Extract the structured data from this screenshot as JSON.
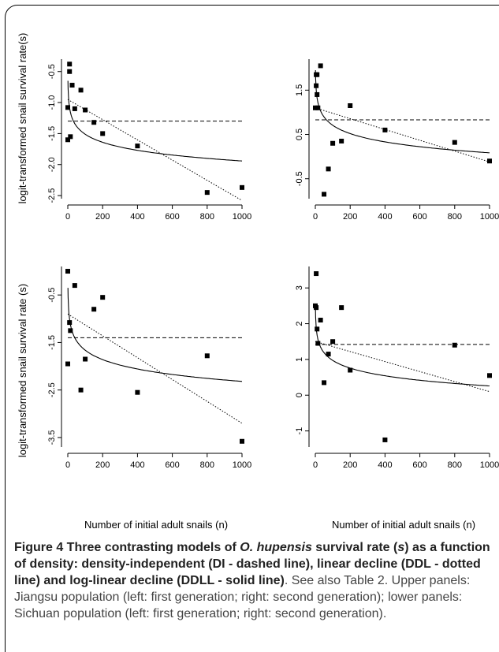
{
  "figure": {
    "ylabel_top": "logit-transformed snail survival rate(s)",
    "ylabel_bottom": "logit-transformed snail survival rate (s)",
    "xlabel": "Number of initial adult snails (n)",
    "caption": {
      "bold_1": "Figure 4 Three contrasting models of ",
      "italic_1": "O. hupensis",
      "bold_2": " survival rate (",
      "italic_2": "s",
      "bold_3": ") as a function of density: density-independent (DI - dashed line), linear decline (DDL - dotted line) and log-linear decline (DDLL - solid line)",
      "rest": ". See also Table 2. Upper panels: Jiangsu population (left: first generation; right: second generation); lower panels: Sichuan population (left: first generation; right: second generation)."
    }
  },
  "chart_data": [
    {
      "type": "scatter",
      "panel": "top-left",
      "xlim": [
        0,
        1000
      ],
      "ylim": [
        -2.55,
        -0.3
      ],
      "xticks": [
        "0",
        "200",
        "400",
        "600",
        "800",
        "1000"
      ],
      "yticks": [
        "-2.5",
        "-2.0",
        "-1.5",
        "-1.0",
        "-0.5"
      ],
      "ytick_values": [
        -2.5,
        -2.0,
        -1.5,
        -1.0,
        -0.5
      ],
      "points": [
        [
          0,
          -1.08
        ],
        [
          0,
          -1.6
        ],
        [
          10,
          -0.38
        ],
        [
          10,
          -0.5
        ],
        [
          15,
          -1.55
        ],
        [
          25,
          -0.72
        ],
        [
          40,
          -1.1
        ],
        [
          75,
          -0.8
        ],
        [
          100,
          -1.12
        ],
        [
          150,
          -1.32
        ],
        [
          200,
          -1.5
        ],
        [
          400,
          -1.7
        ],
        [
          800,
          -2.45
        ],
        [
          1000,
          -2.37
        ]
      ],
      "di_level": -1.3,
      "ddl_line": [
        [
          0,
          -0.95
        ],
        [
          1000,
          -2.58
        ]
      ],
      "ddll": {
        "a": -0.65,
        "b": -0.187
      }
    },
    {
      "type": "scatter",
      "panel": "top-right",
      "xlim": [
        0,
        1000
      ],
      "ylim": [
        -0.95,
        2.2
      ],
      "xticks": [
        "0",
        "200",
        "400",
        "600",
        "800",
        "1000"
      ],
      "yticks": [
        "-0.5",
        "0.5",
        "1.5"
      ],
      "ytick_values": [
        -0.5,
        0.5,
        1.5
      ],
      "points": [
        [
          0,
          1.1
        ],
        [
          5,
          1.6
        ],
        [
          5,
          1.85
        ],
        [
          10,
          1.85
        ],
        [
          10,
          1.4
        ],
        [
          15,
          1.1
        ],
        [
          30,
          2.05
        ],
        [
          50,
          -0.85
        ],
        [
          75,
          -0.28
        ],
        [
          100,
          0.3
        ],
        [
          150,
          0.35
        ],
        [
          200,
          1.15
        ],
        [
          400,
          0.6
        ],
        [
          800,
          0.32
        ],
        [
          1000,
          -0.1
        ]
      ],
      "di_level": 0.83,
      "ddl_line": [
        [
          0,
          1.1
        ],
        [
          1000,
          -0.12
        ]
      ],
      "ddll": {
        "a": 1.95,
        "b": -0.27
      }
    },
    {
      "type": "scatter",
      "panel": "bottom-left",
      "xlim": [
        0,
        1000
      ],
      "ylim": [
        -3.7,
        0.1
      ],
      "xticks": [
        "0",
        "200",
        "400",
        "600",
        "800",
        "1000"
      ],
      "yticks": [
        "-3.5",
        "-2.5",
        "-1.5",
        "-0.5"
      ],
      "ytick_values": [
        -3.5,
        -2.5,
        -1.5,
        -0.5
      ],
      "points": [
        [
          0,
          0
        ],
        [
          0,
          -1.95
        ],
        [
          10,
          -1.08
        ],
        [
          15,
          -1.25
        ],
        [
          40,
          -0.3
        ],
        [
          75,
          -2.5
        ],
        [
          100,
          -1.85
        ],
        [
          150,
          -0.8
        ],
        [
          200,
          -0.55
        ],
        [
          400,
          -2.55
        ],
        [
          800,
          -1.78
        ],
        [
          1000,
          -3.58
        ]
      ],
      "di_level": -1.4,
      "ddl_line": [
        [
          0,
          -0.9
        ],
        [
          1000,
          -3.2
        ]
      ],
      "ddll": {
        "a": -0.35,
        "b": -0.285
      }
    },
    {
      "type": "scatter",
      "panel": "bottom-right",
      "xlim": [
        0,
        1000
      ],
      "ylim": [
        -1.45,
        3.6
      ],
      "xticks": [
        "0",
        "200",
        "400",
        "600",
        "800",
        "1000"
      ],
      "yticks": [
        "-1",
        "0",
        "1",
        "2",
        "3"
      ],
      "ytick_values": [
        -1,
        0,
        1,
        2,
        3
      ],
      "points": [
        [
          0,
          2.5
        ],
        [
          5,
          3.4
        ],
        [
          5,
          2.45
        ],
        [
          10,
          1.85
        ],
        [
          15,
          1.45
        ],
        [
          30,
          2.1
        ],
        [
          50,
          0.35
        ],
        [
          75,
          1.15
        ],
        [
          100,
          1.5
        ],
        [
          150,
          2.45
        ],
        [
          200,
          0.7
        ],
        [
          400,
          -1.25
        ],
        [
          800,
          1.4
        ],
        [
          1000,
          0.55
        ]
      ],
      "di_level": 1.42,
      "ddl_line": [
        [
          0,
          1.5
        ],
        [
          1000,
          0.1
        ]
      ],
      "ddll": {
        "a": 2.4,
        "b": -0.31
      }
    }
  ]
}
